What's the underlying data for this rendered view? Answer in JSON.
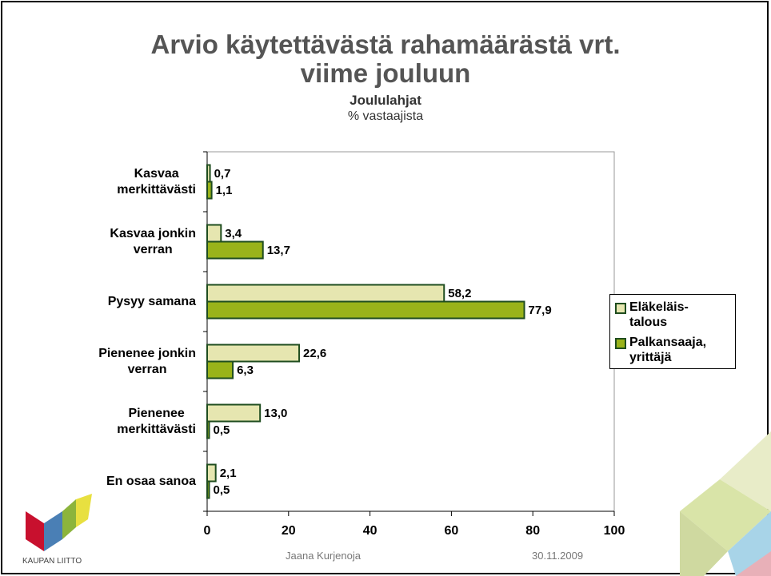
{
  "chart_data": {
    "type": "hbar",
    "title": "Arvio käytettävästä rahamäärästä vrt.\nviime jouluun",
    "subtitle": "Joululahjat",
    "unit_label": "% vastaajista",
    "categories": [
      "Kasvaa\nmerkittävästi",
      "Kasvaa jonkin\nverran",
      "Pysyy samana",
      "Pienenee jonkin\nverran",
      "Pienenee\nmerkittävästi",
      "En osaa sanoa"
    ],
    "series": [
      {
        "name": "Eläkeläis-\ntalous",
        "color": "#e6e6b0",
        "values": [
          0.7,
          3.4,
          58.2,
          22.6,
          13.0,
          2.1
        ],
        "value_labels": [
          "0,7",
          "3,4",
          "58,2",
          "22,6",
          "13,0",
          "2,1"
        ]
      },
      {
        "name": "Palkansaaja,\nyrittäjä",
        "color": "#99b31a",
        "values": [
          1.1,
          13.7,
          77.9,
          6.3,
          0.5,
          0.5
        ],
        "value_labels": [
          "1,1",
          "13,7",
          "77,9",
          "6,3",
          "0,5",
          "0,5"
        ]
      }
    ],
    "xlim": [
      0,
      100
    ],
    "xticks": [
      0,
      20,
      40,
      60,
      80,
      100
    ],
    "legend": "right"
  },
  "footer": {
    "author": "Jaana Kurjenoja",
    "date": "30.11.2009",
    "logo": "KAUPAN LIITTO"
  }
}
